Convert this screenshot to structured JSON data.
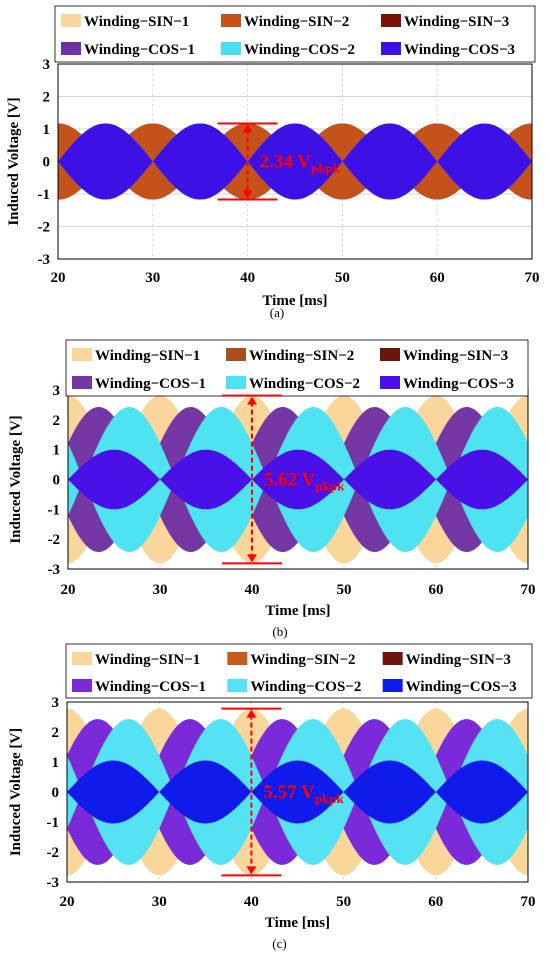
{
  "chart_data": [
    {
      "type": "area",
      "caption": "(a)",
      "xlabel": "Time [ms]",
      "ylabel": "Induced Voltage [V]",
      "xlim": [
        20,
        70
      ],
      "ylim": [
        -3,
        3
      ],
      "xticks": [
        20,
        30,
        40,
        50,
        60,
        70
      ],
      "yticks": [
        3,
        2,
        1,
        0,
        -1,
        -2,
        -3
      ],
      "grid": true,
      "legend_position": "top",
      "annotation": {
        "value": "2.34 V",
        "subscript": "pkpk",
        "at_ms": 40,
        "from": -1.17,
        "to": 1.17
      },
      "series": [
        {
          "name": "Winding−SIN−1",
          "color": "#f9d69a",
          "amplitude": 1.17,
          "phase_deg": 0
        },
        {
          "name": "Winding−SIN−2",
          "color": "#c5521a",
          "amplitude": 1.17,
          "phase_deg": 0
        },
        {
          "name": "Winding−SIN−3",
          "color": "#7a1208",
          "amplitude": 1.17,
          "phase_deg": 0
        },
        {
          "name": "Winding−COS−1",
          "color": "#7030a0",
          "amplitude": 1.17,
          "phase_deg": 90
        },
        {
          "name": "Winding−COS−2",
          "color": "#48e0ee",
          "amplitude": 1.17,
          "phase_deg": 90
        },
        {
          "name": "Winding−COS−3",
          "color": "#3d10e6",
          "amplitude": 1.17,
          "phase_deg": 90
        }
      ],
      "period_ms": 20
    },
    {
      "type": "area",
      "caption": "(b)",
      "xlabel": "Time [ms]",
      "ylabel": "Induced Voltage [V]",
      "xlim": [
        20,
        70
      ],
      "ylim": [
        -3,
        3
      ],
      "xticks": [
        20,
        30,
        40,
        50,
        60,
        70
      ],
      "yticks": [
        3,
        2,
        1,
        0,
        -1,
        -2,
        -3
      ],
      "grid": true,
      "legend_position": "top",
      "annotation": {
        "value": "5.62 V",
        "subscript": "pkpk",
        "at_ms": 40,
        "from": -2.81,
        "to": 2.81
      },
      "series": [
        {
          "name": "Winding−SIN−1",
          "color": "#f9d69a",
          "amplitude": 2.81,
          "phase_deg": 0
        },
        {
          "name": "Winding−SIN−2",
          "color": "#a94e1c",
          "amplitude": 1.62,
          "phase_deg": 120
        },
        {
          "name": "Winding−SIN−3",
          "color": "#6a160a",
          "amplitude": 1.62,
          "phase_deg": 240
        },
        {
          "name": "Winding−COS−1",
          "color": "#7437a4",
          "amplitude": 2.43,
          "phase_deg": 120
        },
        {
          "name": "Winding−COS−2",
          "color": "#4fe3f1",
          "amplitude": 2.43,
          "phase_deg": 240
        },
        {
          "name": "Winding−COS−3",
          "color": "#4a10e8",
          "amplitude": 1.0,
          "phase_deg": 90
        }
      ],
      "period_ms": 20
    },
    {
      "type": "area",
      "caption": "(c)",
      "xlabel": "Time [ms]",
      "ylabel": "Induced Voltage [V]",
      "xlim": [
        20,
        70
      ],
      "ylim": [
        -3,
        3
      ],
      "xticks": [
        20,
        30,
        40,
        50,
        60,
        70
      ],
      "yticks": [
        3,
        2,
        1,
        0,
        -1,
        -2,
        -3
      ],
      "grid": true,
      "legend_position": "top",
      "annotation": {
        "value": "5.57 V",
        "subscript": "pkpk",
        "at_ms": 40,
        "from": -2.78,
        "to": 2.78
      },
      "series": [
        {
          "name": "Winding−SIN−1",
          "color": "#f9d69a",
          "amplitude": 2.78,
          "phase_deg": 0
        },
        {
          "name": "Winding−SIN−2",
          "color": "#c85a1a",
          "amplitude": 1.62,
          "phase_deg": 120
        },
        {
          "name": "Winding−SIN−3",
          "color": "#6d120b",
          "amplitude": 1.62,
          "phase_deg": 240
        },
        {
          "name": "Winding−COS−1",
          "color": "#7a2ad8",
          "amplitude": 2.43,
          "phase_deg": 120
        },
        {
          "name": "Winding−COS−2",
          "color": "#55e2f3",
          "amplitude": 2.43,
          "phase_deg": 240
        },
        {
          "name": "Winding−COS−3",
          "color": "#0f1bea",
          "amplitude": 1.05,
          "phase_deg": 90
        }
      ],
      "period_ms": 20
    }
  ]
}
